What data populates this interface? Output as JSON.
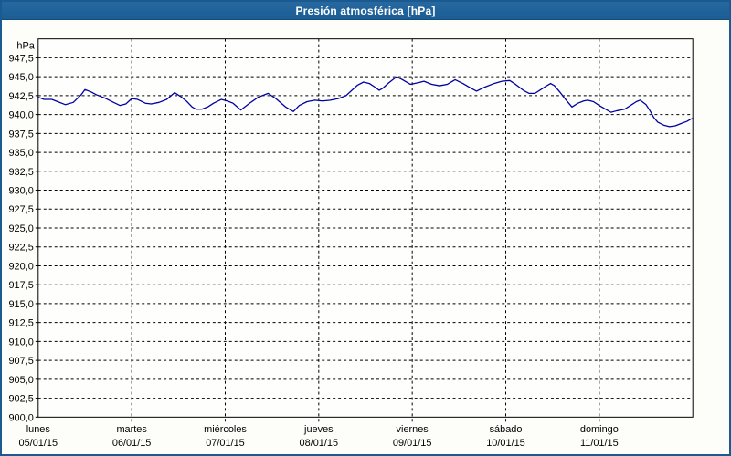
{
  "window": {
    "title": "Presión atmosférica [hPa]"
  },
  "colors": {
    "frame_border": "#1b5a90",
    "titlebar_bg": "#1f629a",
    "title_text": "#ffffff",
    "background": "#fdfdfa",
    "plot_bg": "#fefefc",
    "grid": "#000000",
    "text": "#000000",
    "line": "#0000a0"
  },
  "chart_data": {
    "type": "line",
    "title": "Presión atmosférica [hPa]",
    "ylabel": "hPa",
    "xlabel": "",
    "grid": "dashed",
    "legend": "none",
    "y_axis": {
      "min": 900,
      "max": 950,
      "tick_step": 2.5,
      "label_min": 900,
      "label_max": 947.5,
      "decimal_separator": ","
    },
    "x_axis": {
      "hours_total": 168,
      "days": [
        {
          "weekday": "lunes",
          "date": "05/01/15"
        },
        {
          "weekday": "martes",
          "date": "06/01/15"
        },
        {
          "weekday": "miércoles",
          "date": "07/01/15"
        },
        {
          "weekday": "jueves",
          "date": "08/01/15"
        },
        {
          "weekday": "viernes",
          "date": "09/01/15"
        },
        {
          "weekday": "sábado",
          "date": "10/01/15"
        },
        {
          "weekday": "domingo",
          "date": "11/01/15"
        }
      ]
    },
    "series": [
      {
        "name": "Presión atmosférica",
        "unit": "hPa",
        "points": [
          [
            0,
            942.3
          ],
          [
            1.5,
            942.0
          ],
          [
            3.5,
            942.0
          ],
          [
            5,
            941.7
          ],
          [
            7,
            941.3
          ],
          [
            9,
            941.6
          ],
          [
            11,
            942.6
          ],
          [
            12,
            943.3
          ],
          [
            13.5,
            943.0
          ],
          [
            15,
            942.6
          ],
          [
            17,
            942.2
          ],
          [
            19,
            941.7
          ],
          [
            21,
            941.2
          ],
          [
            22.5,
            941.4
          ],
          [
            24,
            942.1
          ],
          [
            25.5,
            942.0
          ],
          [
            27.5,
            941.5
          ],
          [
            29,
            941.4
          ],
          [
            31,
            941.6
          ],
          [
            33,
            942.0
          ],
          [
            35,
            942.9
          ],
          [
            36.5,
            942.4
          ],
          [
            38,
            941.8
          ],
          [
            39.5,
            941.0
          ],
          [
            40.5,
            940.7
          ],
          [
            42,
            940.7
          ],
          [
            43.5,
            941.0
          ],
          [
            45,
            941.5
          ],
          [
            47,
            942.0
          ],
          [
            48.5,
            941.8
          ],
          [
            50,
            941.5
          ],
          [
            52,
            940.6
          ],
          [
            54,
            941.4
          ],
          [
            56.5,
            942.3
          ],
          [
            59,
            942.8
          ],
          [
            61,
            942.1
          ],
          [
            63.5,
            941.0
          ],
          [
            65.5,
            940.4
          ],
          [
            67,
            941.2
          ],
          [
            69,
            941.7
          ],
          [
            71,
            941.9
          ],
          [
            73,
            941.8
          ],
          [
            75,
            941.9
          ],
          [
            77,
            942.1
          ],
          [
            79,
            942.5
          ],
          [
            80.5,
            943.2
          ],
          [
            82,
            943.9
          ],
          [
            83.5,
            944.3
          ],
          [
            85,
            944.1
          ],
          [
            86.5,
            943.6
          ],
          [
            87.5,
            943.2
          ],
          [
            88.5,
            943.5
          ],
          [
            90,
            944.2
          ],
          [
            92,
            945.0
          ],
          [
            93.5,
            944.6
          ],
          [
            95.5,
            944.0
          ],
          [
            97.5,
            944.2
          ],
          [
            99,
            944.4
          ],
          [
            101,
            944.0
          ],
          [
            103,
            943.8
          ],
          [
            105,
            944.0
          ],
          [
            107,
            944.6
          ],
          [
            109,
            944.1
          ],
          [
            111,
            943.5
          ],
          [
            112.5,
            943.1
          ],
          [
            114.5,
            943.6
          ],
          [
            117,
            944.1
          ],
          [
            119,
            944.4
          ],
          [
            121,
            944.5
          ],
          [
            122.5,
            944.0
          ],
          [
            124.5,
            943.2
          ],
          [
            126,
            942.8
          ],
          [
            127.5,
            942.8
          ],
          [
            129,
            943.3
          ],
          [
            130.5,
            943.8
          ],
          [
            131.5,
            944.1
          ],
          [
            132.5,
            943.8
          ],
          [
            134,
            942.9
          ],
          [
            135.5,
            941.9
          ],
          [
            137,
            941.0
          ],
          [
            138.5,
            941.5
          ],
          [
            140,
            941.8
          ],
          [
            141,
            941.9
          ],
          [
            142.5,
            941.7
          ],
          [
            144,
            941.2
          ],
          [
            146,
            940.6
          ],
          [
            147,
            940.3
          ],
          [
            148.5,
            940.5
          ],
          [
            150.5,
            940.7
          ],
          [
            152,
            941.2
          ],
          [
            153.5,
            941.7
          ],
          [
            154.5,
            941.9
          ],
          [
            156,
            941.3
          ],
          [
            157,
            940.5
          ],
          [
            158,
            939.6
          ],
          [
            159,
            939.0
          ],
          [
            160.5,
            938.6
          ],
          [
            162,
            938.4
          ],
          [
            163.5,
            938.5
          ],
          [
            165,
            938.8
          ],
          [
            166.5,
            939.1
          ],
          [
            167.5,
            939.4
          ],
          [
            168,
            939.5
          ]
        ]
      }
    ]
  }
}
